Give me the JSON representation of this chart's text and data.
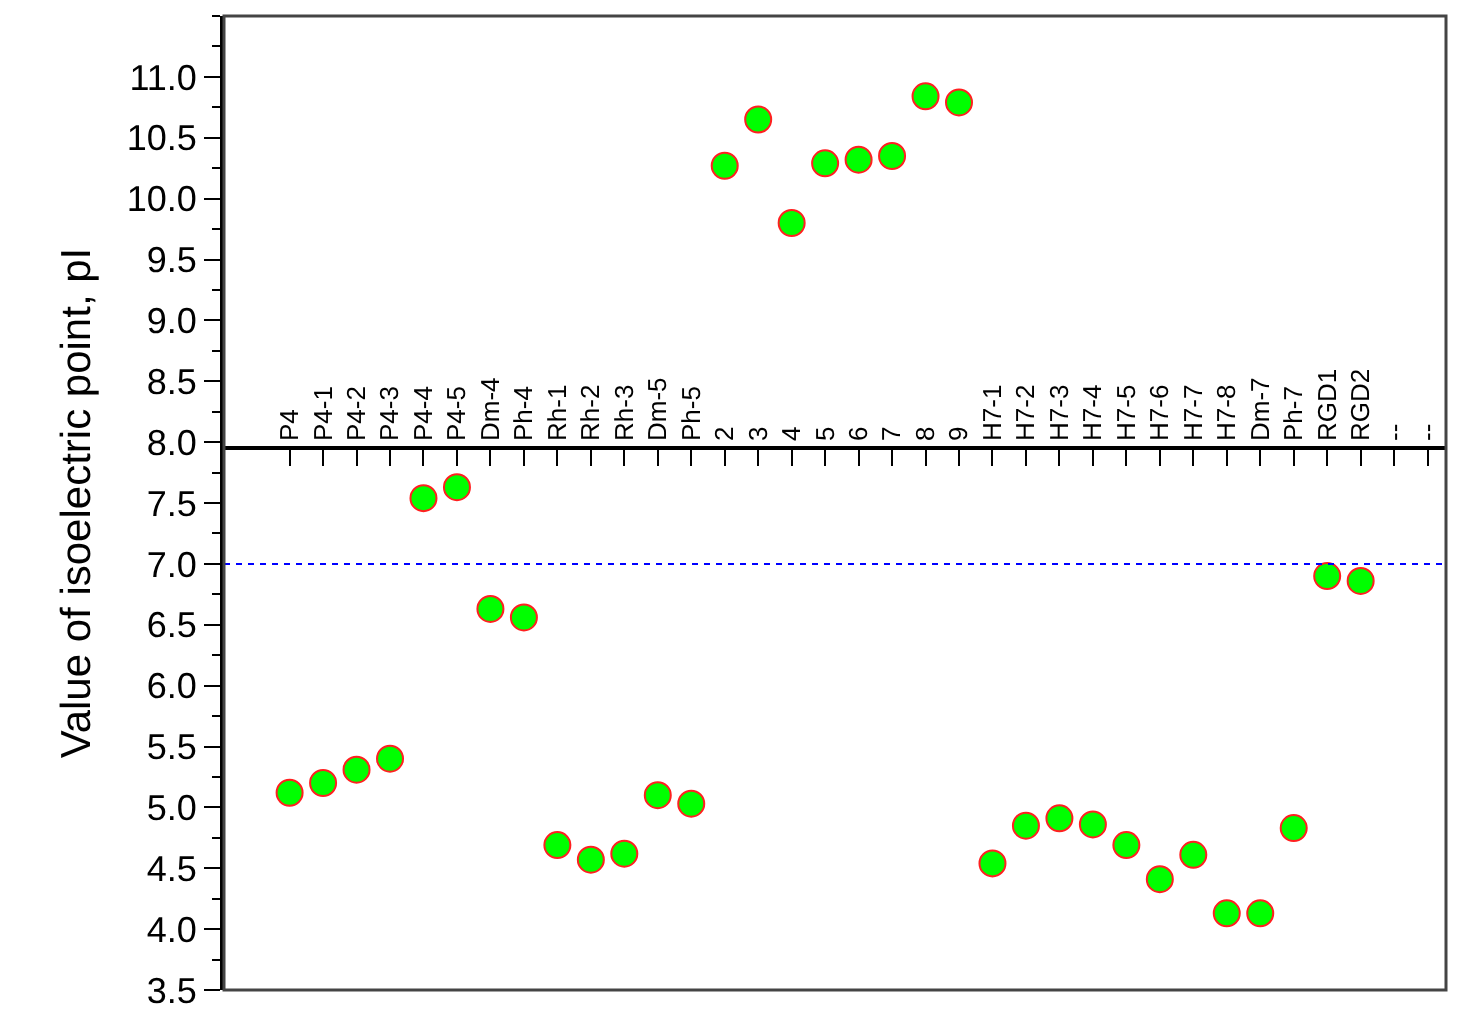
{
  "chart_data": {
    "type": "scatter",
    "ylabel": "Value of isoelectric point, pI",
    "categories": [
      "P4",
      "P4-1",
      "P4-2",
      "P4-3",
      "P4-4",
      "P4-5",
      "Dm-4",
      "Ph-4",
      "Rh-1",
      "Rh-2",
      "Rh-3",
      "Dm-5",
      "Ph-5",
      "2",
      "3",
      "4",
      "5",
      "6",
      "7",
      "8",
      "9",
      "H7-1",
      "H7-2",
      "H7-3",
      "H7-4",
      "H7-5",
      "H7-6",
      "H7-7",
      "H7-8",
      "Dm-7",
      "Ph-7",
      "RGD1",
      "RGD2",
      "--",
      "--"
    ],
    "series": [
      {
        "color": "#00ff00",
        "values": [
          5.12,
          5.2,
          5.31,
          5.4,
          7.54,
          7.63,
          6.63,
          6.56,
          4.69,
          4.57,
          4.62,
          5.1,
          5.03,
          10.27,
          10.65,
          9.8,
          10.29,
          10.32,
          10.35,
          10.84,
          10.79,
          4.54,
          4.85,
          4.91,
          4.86,
          4.69,
          4.41,
          4.61,
          4.13,
          4.13,
          4.83,
          6.9,
          6.86,
          null,
          null
        ]
      }
    ],
    "ylim": [
      3.5,
      11.5
    ],
    "yticks": [
      {
        "value": 3.5,
        "label": "3.5"
      },
      {
        "value": 4.0,
        "label": "4.0"
      },
      {
        "value": 4.5,
        "label": "4.5"
      },
      {
        "value": 5.0,
        "label": "5.0"
      },
      {
        "value": 5.5,
        "label": "5.5"
      },
      {
        "value": 6.0,
        "label": "6.0"
      },
      {
        "value": 6.5,
        "label": "6.5"
      },
      {
        "value": 7.0,
        "label": "7.0"
      },
      {
        "value": 7.5,
        "label": "7.5"
      },
      {
        "value": 8.0,
        "label": "8.0"
      },
      {
        "value": 8.5,
        "label": "8.5"
      },
      {
        "value": 9.0,
        "label": "9.0"
      },
      {
        "value": 9.5,
        "label": "9.5"
      },
      {
        "value": 10.0,
        "label": "10.0"
      },
      {
        "value": 10.5,
        "label": "10.5"
      },
      {
        "value": 11.0,
        "label": "11.0"
      }
    ],
    "ref_lines": [
      {
        "axis": "y",
        "value": 7.0,
        "color": "#0000ff",
        "line_style": "dotted"
      }
    ],
    "marker": "circle"
  }
}
